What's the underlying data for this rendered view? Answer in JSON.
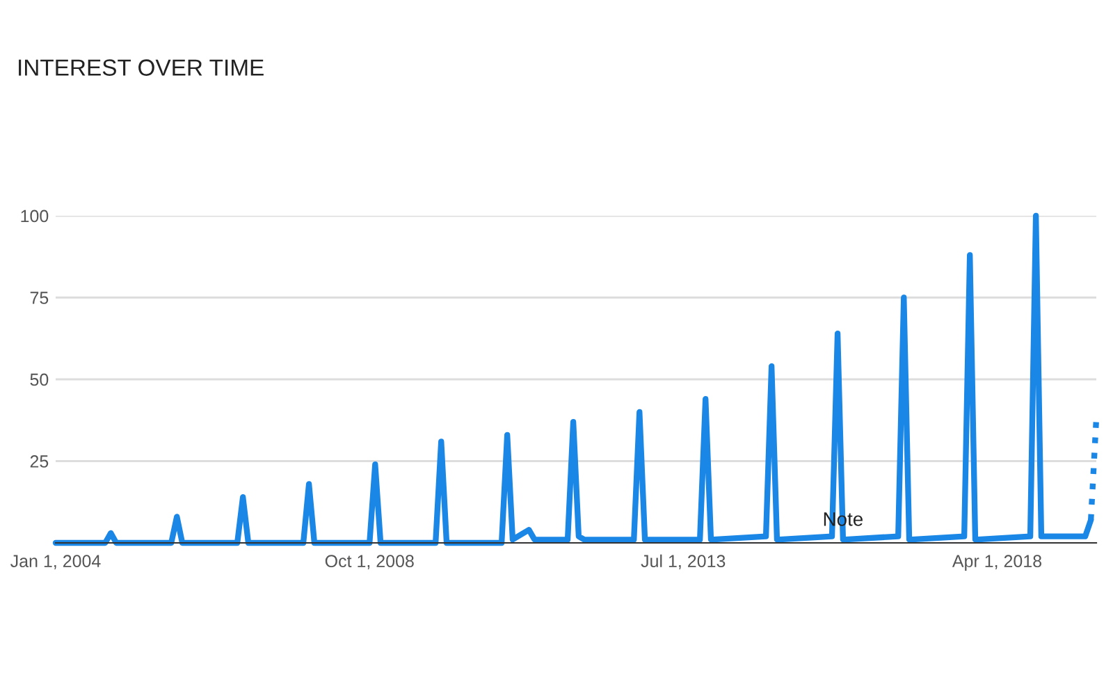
{
  "chart_data": {
    "type": "line",
    "title": "INTEREST OVER TIME",
    "x": [
      "2004-01-01",
      "2004-10-01",
      "2004-11-01",
      "2004-12-01",
      "2005-10-01",
      "2005-11-01",
      "2005-12-01",
      "2006-10-01",
      "2006-11-01",
      "2006-12-01",
      "2007-10-01",
      "2007-11-01",
      "2007-12-01",
      "2008-10-01",
      "2008-11-01",
      "2008-12-01",
      "2009-10-01",
      "2009-11-01",
      "2009-12-01",
      "2010-10-01",
      "2010-11-01",
      "2010-12-01",
      "2011-03-01",
      "2011-04-01",
      "2011-10-01",
      "2011-11-01",
      "2011-12-01",
      "2012-01-01",
      "2012-10-01",
      "2012-11-01",
      "2012-12-01",
      "2013-10-01",
      "2013-11-01",
      "2013-12-01",
      "2014-10-01",
      "2014-11-01",
      "2014-12-01",
      "2015-10-01",
      "2015-11-01",
      "2015-12-01",
      "2016-10-01",
      "2016-11-01",
      "2016-12-01",
      "2017-10-01",
      "2017-11-01",
      "2017-12-01",
      "2018-10-01",
      "2018-11-01",
      "2018-12-01",
      "2019-08-01",
      "2019-09-01"
    ],
    "series": [
      {
        "color": "#1a87e6",
        "line_style": "solid",
        "values": [
          0,
          0,
          3,
          0,
          0,
          8,
          0,
          0,
          14,
          0,
          0,
          18,
          0,
          0,
          24,
          0,
          0,
          31,
          0,
          0,
          33,
          1,
          4,
          1,
          1,
          37,
          2,
          1,
          1,
          40,
          1,
          1,
          44,
          1,
          2,
          54,
          1,
          2,
          64,
          1,
          2,
          75,
          1,
          2,
          88,
          1,
          2,
          100,
          2,
          2,
          7
        ]
      },
      {
        "color": "#1a87e6",
        "line_style": "dotted",
        "x": [
          "2019-09-01",
          "2019-10-01"
        ],
        "values": [
          7,
          38
        ]
      }
    ],
    "xlim": [
      "2004-01-01",
      "2019-10-01"
    ],
    "xticks": [
      {
        "value": "2004-01-01",
        "label": "Jan 1, 2004"
      },
      {
        "value": "2008-10-01",
        "label": "Oct 1, 2008"
      },
      {
        "value": "2013-07-01",
        "label": "Jul 1, 2013"
      },
      {
        "value": "2018-04-01",
        "label": "Apr 1, 2018"
      }
    ],
    "ylim": [
      0,
      100
    ],
    "yticks": [
      25,
      50,
      75,
      100
    ],
    "grid": "y",
    "annotations": [
      {
        "text": "Note",
        "x": "2015-12-01",
        "y": 4
      }
    ]
  }
}
